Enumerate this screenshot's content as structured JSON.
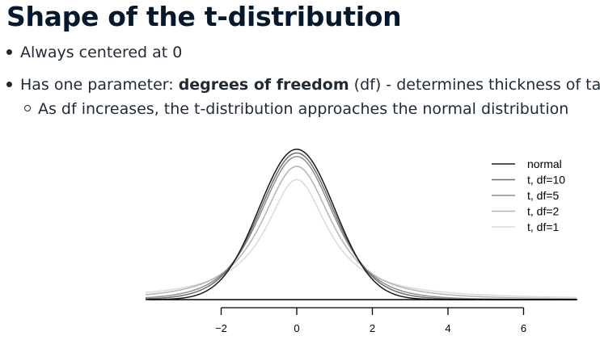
{
  "slide": {
    "title": "Shape of the t-distribution",
    "bullets": [
      {
        "text": "Always centered at 0"
      },
      {
        "prefix": "Has one parameter: ",
        "bold": "degrees of freedom",
        "suffix": " (df) - determines thickness of tails"
      }
    ],
    "sub_bullets": [
      {
        "text": "As df increases, the t-distribution approaches the normal distribution"
      }
    ]
  },
  "chart_data": {
    "type": "line",
    "title": "",
    "xlabel": "",
    "ylabel": "",
    "xlim": [
      -4,
      7.4
    ],
    "ylim": [
      0,
      0.42
    ],
    "xticks": [
      -2,
      0,
      2,
      4,
      6
    ],
    "xtick_labels": [
      "−2",
      "0",
      "2",
      "4",
      "6"
    ],
    "grid": false,
    "legend_position": "top-right",
    "series": [
      {
        "name": "normal",
        "distribution": "normal",
        "color": "#1a1a1a"
      },
      {
        "name": "t, df=10",
        "df": 10,
        "color": "#6e6e6e"
      },
      {
        "name": "t, df=5",
        "df": 5,
        "color": "#8e8e8e"
      },
      {
        "name": "t, df=2",
        "df": 2,
        "color": "#b3b3b3"
      },
      {
        "name": "t, df=1",
        "df": 1,
        "color": "#dadada"
      }
    ]
  }
}
